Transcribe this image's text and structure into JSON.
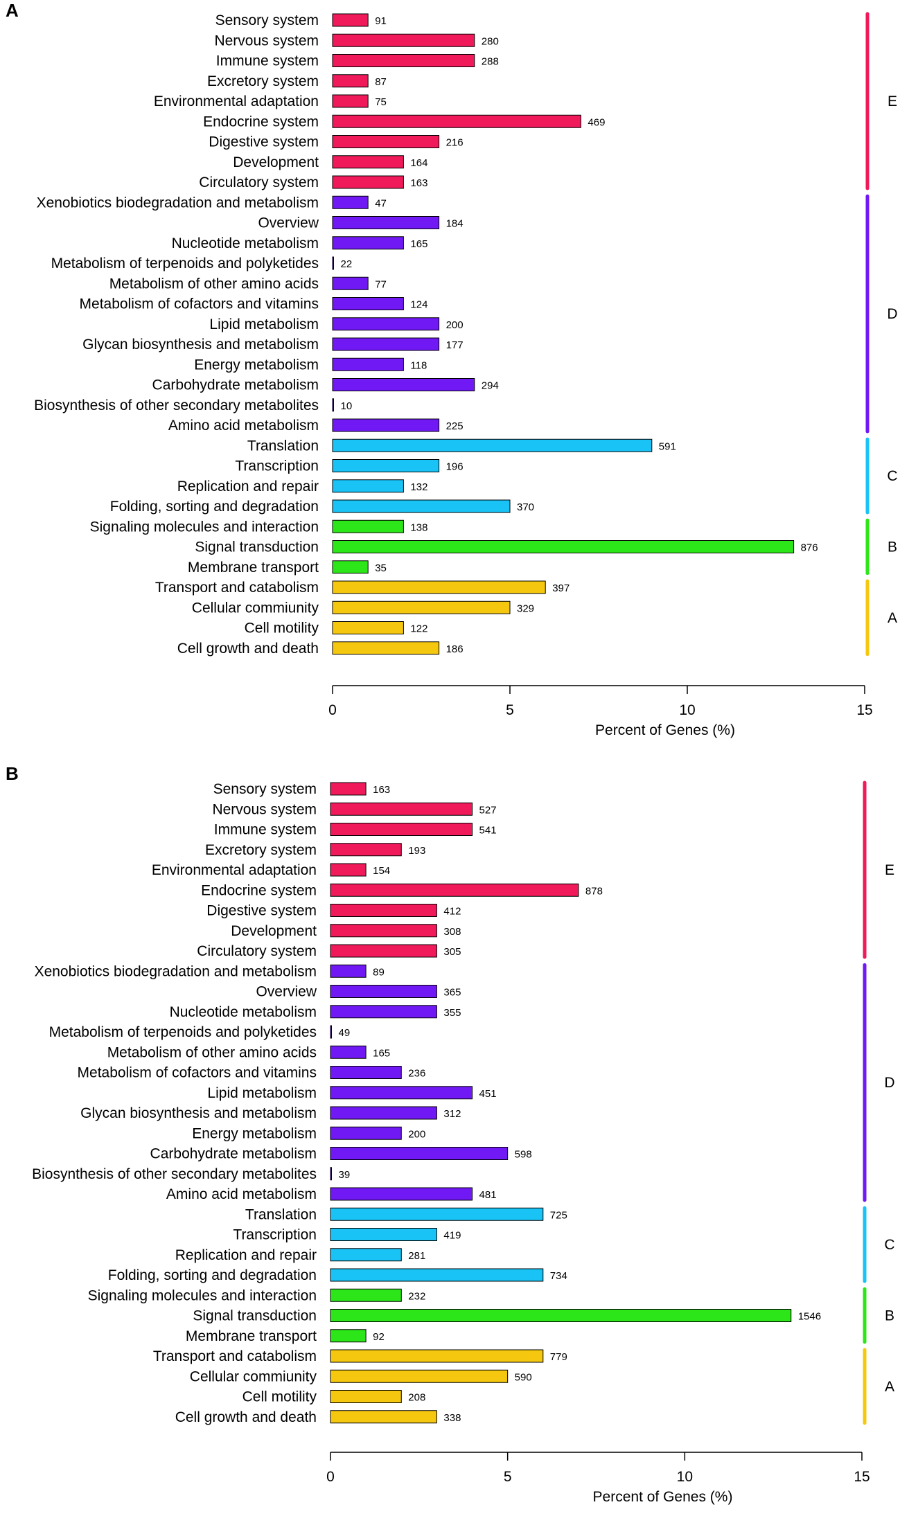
{
  "chart_data": [
    {
      "type": "bar",
      "orientation": "horizontal",
      "panel_label": "A",
      "xlabel": "Percent of Genes (%)",
      "xlim": [
        0,
        15
      ],
      "xticks": [
        0,
        5,
        10,
        15
      ],
      "group_labels": {
        "E": "E",
        "D": "D",
        "C": "C",
        "B": "B",
        "A": "A"
      },
      "groups": [
        {
          "label": "E",
          "color": "#f0195a",
          "categories": [
            "Sensory system",
            "Nervous system",
            "Immune system",
            "Excretory system",
            "Environmental adaptation",
            "Endocrine system",
            "Digestive system",
            "Development",
            "Circulatory system"
          ],
          "counts": [
            91,
            280,
            288,
            87,
            75,
            469,
            216,
            164,
            163
          ],
          "percents": [
            1,
            4,
            4,
            1,
            1,
            7,
            3,
            2,
            2
          ]
        },
        {
          "label": "D",
          "color": "#7019f5",
          "categories": [
            "Xenobiotics biodegradation and metabolism",
            "Overview",
            "Nucleotide metabolism",
            "Metabolism of terpenoids and polyketides",
            "Metabolism of other amino acids",
            "Metabolism of cofactors and vitamins",
            "Lipid metabolism",
            "Glycan biosynthesis and metabolism",
            "Energy metabolism",
            "Carbohydrate metabolism",
            "Biosynthesis of other secondary metabolites",
            "Amino acid metabolism"
          ],
          "counts": [
            47,
            184,
            165,
            22,
            77,
            124,
            200,
            177,
            118,
            294,
            10,
            225
          ],
          "percents": [
            1,
            3,
            2,
            0,
            1,
            2,
            3,
            3,
            2,
            4,
            0,
            3
          ]
        },
        {
          "label": "C",
          "color": "#19c3f5",
          "categories": [
            "Translation",
            "Transcription",
            "Replication and repair",
            "Folding, sorting and degradation"
          ],
          "counts": [
            591,
            196,
            132,
            370
          ],
          "percents": [
            9,
            3,
            2,
            5
          ]
        },
        {
          "label": "B",
          "color": "#2de619",
          "categories": [
            "Signaling molecules and interaction",
            "Signal transduction",
            "Membrane transport"
          ],
          "counts": [
            138,
            876,
            35
          ],
          "percents": [
            2,
            13,
            1
          ]
        },
        {
          "label": "A",
          "color": "#f5c80f",
          "categories": [
            "Transport and catabolism",
            "Cellular commiunity",
            "Cell motility",
            "Cell growth and death"
          ],
          "counts": [
            397,
            329,
            122,
            186
          ],
          "percents": [
            6,
            5,
            2,
            3
          ]
        }
      ]
    },
    {
      "type": "bar",
      "orientation": "horizontal",
      "panel_label": "B",
      "xlabel": "Percent of Genes (%)",
      "xlim": [
        0,
        15
      ],
      "xticks": [
        0,
        5,
        10,
        15
      ],
      "group_labels": {
        "E": "E",
        "D": "D",
        "C": "C",
        "B": "B",
        "A": "A"
      },
      "groups": [
        {
          "label": "E",
          "color": "#f0195a",
          "categories": [
            "Sensory system",
            "Nervous system",
            "Immune system",
            "Excretory system",
            "Environmental adaptation",
            "Endocrine system",
            "Digestive system",
            "Development",
            "Circulatory system"
          ],
          "counts": [
            163,
            527,
            541,
            193,
            154,
            878,
            412,
            308,
            305
          ],
          "percents": [
            1,
            4,
            4,
            2,
            1,
            7,
            3,
            3,
            3
          ]
        },
        {
          "label": "D",
          "color": "#7019f5",
          "categories": [
            "Xenobiotics biodegradation and metabolism",
            "Overview",
            "Nucleotide metabolism",
            "Metabolism of terpenoids and polyketides",
            "Metabolism of other amino acids",
            "Metabolism of cofactors and vitamins",
            "Lipid metabolism",
            "Glycan biosynthesis and metabolism",
            "Energy metabolism",
            "Carbohydrate metabolism",
            "Biosynthesis of other secondary metabolites",
            "Amino acid metabolism"
          ],
          "counts": [
            89,
            365,
            355,
            49,
            165,
            236,
            451,
            312,
            200,
            598,
            39,
            481
          ],
          "percents": [
            1,
            3,
            3,
            0,
            1,
            2,
            4,
            3,
            2,
            5,
            0,
            4
          ]
        },
        {
          "label": "C",
          "color": "#19c3f5",
          "categories": [
            "Translation",
            "Transcription",
            "Replication and repair",
            "Folding, sorting and degradation"
          ],
          "counts": [
            725,
            419,
            281,
            734
          ],
          "percents": [
            6,
            3,
            2,
            6
          ]
        },
        {
          "label": "B",
          "color": "#2de619",
          "categories": [
            "Signaling molecules and interaction",
            "Signal transduction",
            "Membrane transport"
          ],
          "counts": [
            232,
            1546,
            92
          ],
          "percents": [
            2,
            13,
            1
          ]
        },
        {
          "label": "A",
          "color": "#f5c80f",
          "categories": [
            "Transport and catabolism",
            "Cellular commiunity",
            "Cell motility",
            "Cell growth and death"
          ],
          "counts": [
            779,
            590,
            208,
            338
          ],
          "percents": [
            6,
            5,
            2,
            3
          ]
        }
      ]
    }
  ]
}
